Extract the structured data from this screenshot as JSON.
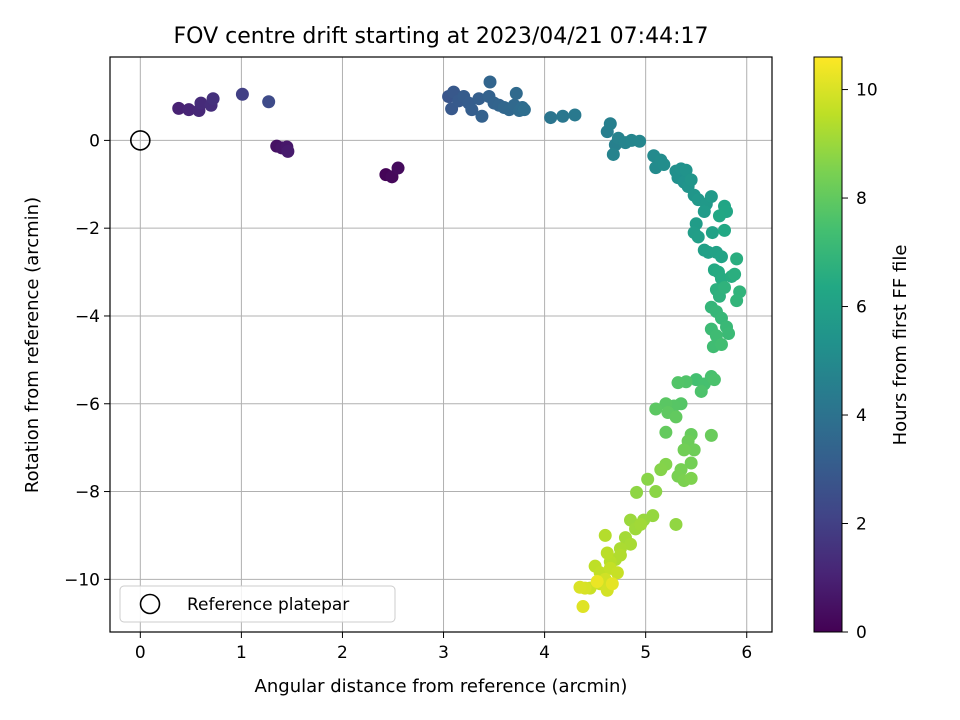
{
  "chart_data": {
    "type": "scatter",
    "title": "FOV centre drift starting at 2023/04/21 07:44:17",
    "xlabel": "Angular distance from reference (arcmin)",
    "ylabel": "Rotation from reference (arcmin)",
    "xlim": [
      -0.3,
      6.25
    ],
    "ylim": [
      -11.2,
      1.9
    ],
    "xticks": [
      0,
      1,
      2,
      3,
      4,
      5,
      6
    ],
    "yticks": [
      -10,
      -8,
      -6,
      -4,
      -2,
      0
    ],
    "grid": true,
    "colorbar": {
      "label": "Hours from first FF file",
      "colormap": "viridis",
      "range": [
        0,
        10.6
      ],
      "ticks": [
        0,
        2,
        4,
        6,
        8,
        10
      ]
    },
    "reference": {
      "x": 0,
      "y": 0,
      "marker": "open-circle",
      "color": "#000000"
    },
    "legend": {
      "position": "lower-left",
      "entries": [
        "Reference platepar"
      ]
    },
    "points": [
      {
        "x": 2.43,
        "y": -0.78,
        "h": 0.1
      },
      {
        "x": 2.49,
        "y": -0.83,
        "h": 0.2
      },
      {
        "x": 2.55,
        "y": -0.63,
        "h": 0.3
      },
      {
        "x": 1.35,
        "y": -0.13,
        "h": 0.5
      },
      {
        "x": 1.4,
        "y": -0.17,
        "h": 0.6
      },
      {
        "x": 1.45,
        "y": -0.15,
        "h": 0.7
      },
      {
        "x": 1.46,
        "y": -0.25,
        "h": 0.8
      },
      {
        "x": 0.38,
        "y": 0.73,
        "h": 1.0
      },
      {
        "x": 0.48,
        "y": 0.7,
        "h": 1.1
      },
      {
        "x": 0.58,
        "y": 0.68,
        "h": 1.2
      },
      {
        "x": 0.6,
        "y": 0.85,
        "h": 1.3
      },
      {
        "x": 0.7,
        "y": 0.8,
        "h": 1.4
      },
      {
        "x": 0.72,
        "y": 0.95,
        "h": 1.5
      },
      {
        "x": 1.01,
        "y": 1.05,
        "h": 2.0
      },
      {
        "x": 1.27,
        "y": 0.88,
        "h": 2.4
      },
      {
        "x": 3.05,
        "y": 1.0,
        "h": 2.8
      },
      {
        "x": 3.1,
        "y": 1.1,
        "h": 2.9
      },
      {
        "x": 3.08,
        "y": 0.72,
        "h": 2.95
      },
      {
        "x": 3.15,
        "y": 0.9,
        "h": 3.0
      },
      {
        "x": 3.2,
        "y": 1.0,
        "h": 3.05
      },
      {
        "x": 3.25,
        "y": 0.85,
        "h": 3.1
      },
      {
        "x": 3.28,
        "y": 0.7,
        "h": 3.15
      },
      {
        "x": 3.35,
        "y": 0.95,
        "h": 3.2
      },
      {
        "x": 3.38,
        "y": 0.55,
        "h": 3.25
      },
      {
        "x": 3.45,
        "y": 1.0,
        "h": 3.3
      },
      {
        "x": 3.5,
        "y": 0.85,
        "h": 3.35
      },
      {
        "x": 3.55,
        "y": 0.8,
        "h": 3.4
      },
      {
        "x": 3.46,
        "y": 1.33,
        "h": 3.45
      },
      {
        "x": 3.6,
        "y": 0.75,
        "h": 3.5
      },
      {
        "x": 3.65,
        "y": 0.7,
        "h": 3.55
      },
      {
        "x": 3.7,
        "y": 0.8,
        "h": 3.6
      },
      {
        "x": 3.72,
        "y": 1.07,
        "h": 3.65
      },
      {
        "x": 3.75,
        "y": 0.68,
        "h": 3.7
      },
      {
        "x": 3.78,
        "y": 0.75,
        "h": 3.75
      },
      {
        "x": 3.8,
        "y": 0.7,
        "h": 3.8
      },
      {
        "x": 4.06,
        "y": 0.52,
        "h": 4.1
      },
      {
        "x": 4.18,
        "y": 0.55,
        "h": 4.2
      },
      {
        "x": 4.3,
        "y": 0.58,
        "h": 4.3
      },
      {
        "x": 4.62,
        "y": 0.2,
        "h": 4.5
      },
      {
        "x": 4.65,
        "y": 0.38,
        "h": 4.55
      },
      {
        "x": 4.7,
        "y": -0.1,
        "h": 4.6
      },
      {
        "x": 4.73,
        "y": 0.05,
        "h": 4.65
      },
      {
        "x": 4.68,
        "y": -0.32,
        "h": 4.7
      },
      {
        "x": 4.8,
        "y": -0.05,
        "h": 4.75
      },
      {
        "x": 4.86,
        "y": 0.0,
        "h": 4.8
      },
      {
        "x": 4.94,
        "y": -0.02,
        "h": 4.85
      },
      {
        "x": 5.08,
        "y": -0.35,
        "h": 5.0
      },
      {
        "x": 5.1,
        "y": -0.62,
        "h": 5.05
      },
      {
        "x": 5.15,
        "y": -0.45,
        "h": 5.1
      },
      {
        "x": 5.18,
        "y": -0.55,
        "h": 5.15
      },
      {
        "x": 5.3,
        "y": -0.7,
        "h": 5.2
      },
      {
        "x": 5.32,
        "y": -0.85,
        "h": 5.25
      },
      {
        "x": 5.35,
        "y": -0.65,
        "h": 5.3
      },
      {
        "x": 5.38,
        "y": -0.95,
        "h": 5.35
      },
      {
        "x": 5.4,
        "y": -0.68,
        "h": 5.4
      },
      {
        "x": 5.42,
        "y": -1.05,
        "h": 5.45
      },
      {
        "x": 5.45,
        "y": -0.9,
        "h": 5.5
      },
      {
        "x": 5.48,
        "y": -1.25,
        "h": 5.55
      },
      {
        "x": 5.52,
        "y": -1.35,
        "h": 5.6
      },
      {
        "x": 5.6,
        "y": -1.45,
        "h": 5.65
      },
      {
        "x": 5.65,
        "y": -1.28,
        "h": 5.7
      },
      {
        "x": 5.58,
        "y": -1.62,
        "h": 5.75
      },
      {
        "x": 5.5,
        "y": -1.9,
        "h": 5.8
      },
      {
        "x": 5.48,
        "y": -2.1,
        "h": 5.85
      },
      {
        "x": 5.52,
        "y": -2.2,
        "h": 5.9
      },
      {
        "x": 5.58,
        "y": -2.5,
        "h": 5.95
      },
      {
        "x": 5.62,
        "y": -2.55,
        "h": 6.0
      },
      {
        "x": 5.66,
        "y": -2.1,
        "h": 6.05
      },
      {
        "x": 5.7,
        "y": -2.55,
        "h": 6.1
      },
      {
        "x": 5.75,
        "y": -2.65,
        "h": 6.15
      },
      {
        "x": 5.78,
        "y": -1.5,
        "h": 6.2
      },
      {
        "x": 5.8,
        "y": -1.62,
        "h": 6.25
      },
      {
        "x": 5.73,
        "y": -1.72,
        "h": 6.3
      },
      {
        "x": 5.78,
        "y": -2.05,
        "h": 6.35
      },
      {
        "x": 5.68,
        "y": -2.95,
        "h": 6.4
      },
      {
        "x": 5.72,
        "y": -3.0,
        "h": 6.45
      },
      {
        "x": 5.75,
        "y": -3.15,
        "h": 6.5
      },
      {
        "x": 5.85,
        "y": -3.1,
        "h": 6.55
      },
      {
        "x": 5.9,
        "y": -2.7,
        "h": 6.6
      },
      {
        "x": 5.88,
        "y": -3.05,
        "h": 6.65
      },
      {
        "x": 5.7,
        "y": -3.4,
        "h": 6.7
      },
      {
        "x": 5.73,
        "y": -3.55,
        "h": 6.75
      },
      {
        "x": 5.78,
        "y": -3.35,
        "h": 6.8
      },
      {
        "x": 5.93,
        "y": -3.45,
        "h": 6.85
      },
      {
        "x": 5.9,
        "y": -3.65,
        "h": 6.9
      },
      {
        "x": 5.65,
        "y": -3.8,
        "h": 6.95
      },
      {
        "x": 5.7,
        "y": -3.9,
        "h": 7.0
      },
      {
        "x": 5.75,
        "y": -4.05,
        "h": 7.05
      },
      {
        "x": 5.8,
        "y": -4.25,
        "h": 7.1
      },
      {
        "x": 5.82,
        "y": -4.4,
        "h": 7.15
      },
      {
        "x": 5.65,
        "y": -4.3,
        "h": 7.2
      },
      {
        "x": 5.7,
        "y": -4.45,
        "h": 7.25
      },
      {
        "x": 5.67,
        "y": -4.7,
        "h": 7.3
      },
      {
        "x": 5.75,
        "y": -4.65,
        "h": 7.35
      },
      {
        "x": 5.5,
        "y": -5.45,
        "h": 7.4
      },
      {
        "x": 5.58,
        "y": -5.55,
        "h": 7.45
      },
      {
        "x": 5.65,
        "y": -5.38,
        "h": 7.5
      },
      {
        "x": 5.68,
        "y": -5.45,
        "h": 7.55
      },
      {
        "x": 5.55,
        "y": -5.72,
        "h": 7.6
      },
      {
        "x": 5.4,
        "y": -5.5,
        "h": 7.65
      },
      {
        "x": 5.32,
        "y": -5.52,
        "h": 7.7
      },
      {
        "x": 5.35,
        "y": -6.0,
        "h": 7.75
      },
      {
        "x": 5.28,
        "y": -6.05,
        "h": 7.8
      },
      {
        "x": 5.2,
        "y": -6.0,
        "h": 7.85
      },
      {
        "x": 5.1,
        "y": -6.12,
        "h": 7.9
      },
      {
        "x": 5.22,
        "y": -6.2,
        "h": 7.95
      },
      {
        "x": 5.3,
        "y": -6.3,
        "h": 8.0
      },
      {
        "x": 5.2,
        "y": -6.65,
        "h": 8.05
      },
      {
        "x": 5.45,
        "y": -6.7,
        "h": 8.1
      },
      {
        "x": 5.65,
        "y": -6.72,
        "h": 8.15
      },
      {
        "x": 5.42,
        "y": -6.85,
        "h": 8.2
      },
      {
        "x": 5.48,
        "y": -7.05,
        "h": 8.25
      },
      {
        "x": 5.38,
        "y": -7.05,
        "h": 8.3
      },
      {
        "x": 5.45,
        "y": -7.35,
        "h": 8.35
      },
      {
        "x": 5.35,
        "y": -7.5,
        "h": 8.4
      },
      {
        "x": 5.32,
        "y": -7.65,
        "h": 8.45
      },
      {
        "x": 5.38,
        "y": -7.75,
        "h": 8.5
      },
      {
        "x": 5.45,
        "y": -7.7,
        "h": 8.55
      },
      {
        "x": 5.2,
        "y": -7.38,
        "h": 8.6
      },
      {
        "x": 5.15,
        "y": -7.5,
        "h": 8.65
      },
      {
        "x": 5.02,
        "y": -7.72,
        "h": 8.7
      },
      {
        "x": 5.1,
        "y": -8.0,
        "h": 8.75
      },
      {
        "x": 4.91,
        "y": -8.02,
        "h": 8.8
      },
      {
        "x": 5.3,
        "y": -8.75,
        "h": 8.85
      },
      {
        "x": 5.07,
        "y": -8.55,
        "h": 8.9
      },
      {
        "x": 4.98,
        "y": -8.65,
        "h": 8.95
      },
      {
        "x": 4.85,
        "y": -8.65,
        "h": 9.0
      },
      {
        "x": 4.9,
        "y": -8.85,
        "h": 9.05
      },
      {
        "x": 4.95,
        "y": -8.75,
        "h": 9.1
      },
      {
        "x": 4.8,
        "y": -9.05,
        "h": 9.15
      },
      {
        "x": 4.85,
        "y": -9.2,
        "h": 9.2
      },
      {
        "x": 4.75,
        "y": -9.3,
        "h": 9.25
      },
      {
        "x": 4.7,
        "y": -9.55,
        "h": 9.3
      },
      {
        "x": 4.75,
        "y": -9.45,
        "h": 9.35
      },
      {
        "x": 4.6,
        "y": -9.0,
        "h": 9.4
      },
      {
        "x": 4.65,
        "y": -9.6,
        "h": 9.45
      },
      {
        "x": 4.62,
        "y": -9.4,
        "h": 9.5
      },
      {
        "x": 4.5,
        "y": -9.7,
        "h": 9.55
      },
      {
        "x": 4.55,
        "y": -9.85,
        "h": 9.6
      },
      {
        "x": 4.65,
        "y": -9.75,
        "h": 9.65
      },
      {
        "x": 4.72,
        "y": -9.85,
        "h": 9.7
      },
      {
        "x": 4.45,
        "y": -10.2,
        "h": 9.75
      },
      {
        "x": 4.55,
        "y": -10.1,
        "h": 9.8
      },
      {
        "x": 4.6,
        "y": -10.0,
        "h": 9.85
      },
      {
        "x": 4.62,
        "y": -10.25,
        "h": 9.9
      },
      {
        "x": 4.4,
        "y": -10.2,
        "h": 9.95
      },
      {
        "x": 4.35,
        "y": -10.18,
        "h": 10.0
      },
      {
        "x": 4.38,
        "y": -10.62,
        "h": 10.1
      },
      {
        "x": 4.67,
        "y": -10.1,
        "h": 10.2
      },
      {
        "x": 4.52,
        "y": -10.05,
        "h": 10.3
      }
    ]
  }
}
